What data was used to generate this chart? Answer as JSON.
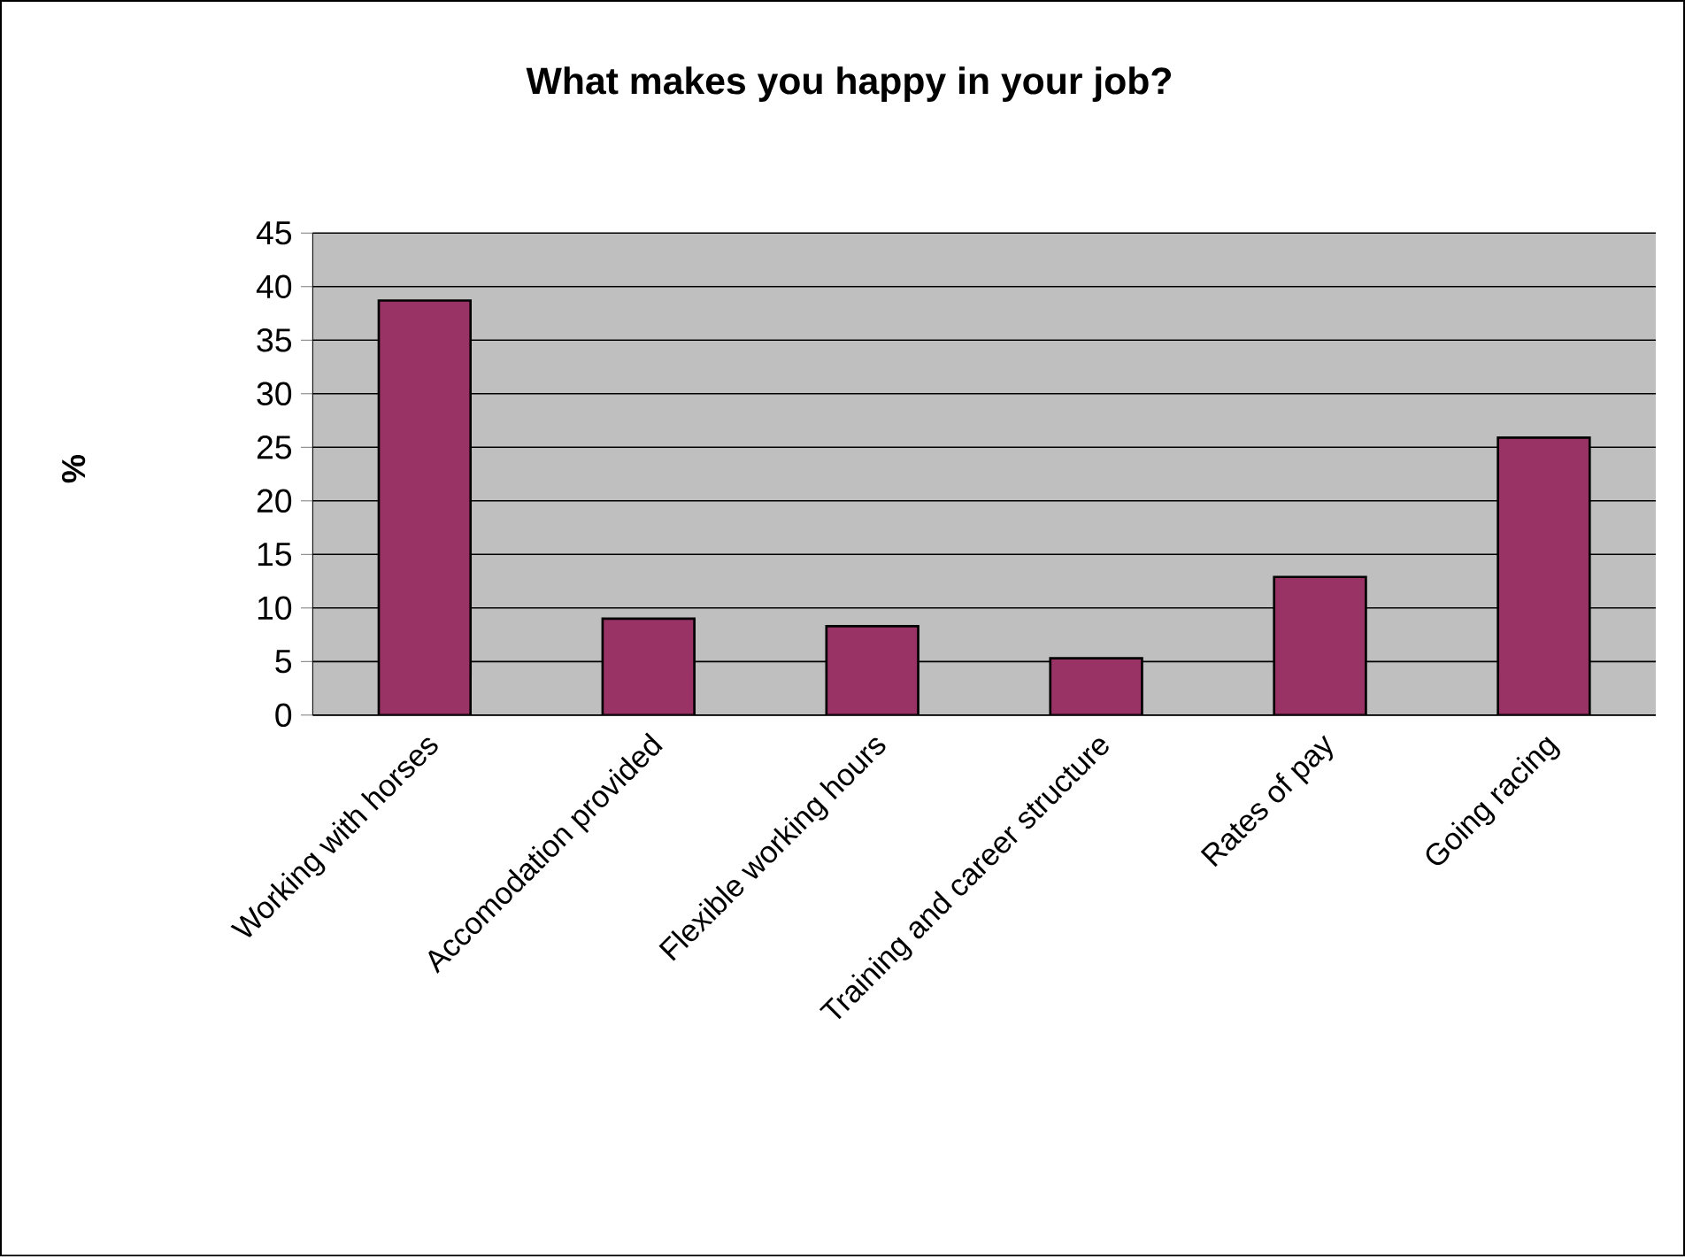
{
  "chart_data": {
    "type": "bar",
    "title": "What makes you happy in your job?",
    "ylabel": "%",
    "categories": [
      "Working with horses",
      "Accomodation provided",
      "Flexible working hours",
      "Training and career structure",
      "Rates of pay",
      "Going racing"
    ],
    "values": [
      38.7,
      9.0,
      8.3,
      5.3,
      12.9,
      25.9
    ],
    "color": "#993366",
    "ylim": [
      0,
      45
    ],
    "yticks": [
      0,
      5,
      10,
      15,
      20,
      25,
      30,
      35,
      40,
      45
    ],
    "grid": "y"
  }
}
